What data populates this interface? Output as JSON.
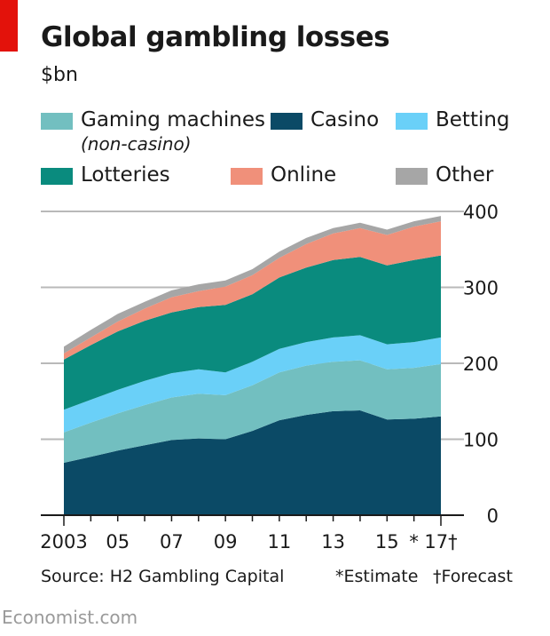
{
  "header": {
    "title": "Global gambling losses",
    "unit": "$bn"
  },
  "legend": [
    {
      "key": "gaming",
      "label": "Gaming machines",
      "sub": "(non-casino)",
      "color": "#72bfc0"
    },
    {
      "key": "casino",
      "label": "Casino",
      "color": "#0b4a66"
    },
    {
      "key": "betting",
      "label": "Betting",
      "color": "#6ad0f8"
    },
    {
      "key": "lotteries",
      "label": "Lotteries",
      "color": "#0a8b7e"
    },
    {
      "key": "online",
      "label": "Online",
      "color": "#f0907a"
    },
    {
      "key": "other",
      "label": "Other",
      "color": "#a6a6a6"
    }
  ],
  "footer": {
    "source": "Source: H2 Gambling Capital",
    "estimate_note": "*Estimate",
    "forecast_note": "†Forecast"
  },
  "brand": "Economist.com",
  "chart_data": {
    "type": "area",
    "stacked": true,
    "title": "Global gambling losses",
    "ylabel": "$bn",
    "x": [
      2003,
      2004,
      2005,
      2006,
      2007,
      2008,
      2009,
      2010,
      2011,
      2012,
      2013,
      2014,
      2015,
      2016,
      2017
    ],
    "x_tick_labels": [
      "2003",
      "05",
      "07",
      "09",
      "11",
      "13",
      "15",
      "*",
      "17†"
    ],
    "ylim": [
      0,
      400
    ],
    "y_ticks": [
      0,
      100,
      200,
      300,
      400
    ],
    "y_axis_side": "right",
    "grid": true,
    "series": [
      {
        "name": "Casino",
        "color": "#0b4a66",
        "values": [
          69,
          77,
          85,
          92,
          99,
          101,
          100,
          111,
          125,
          132,
          137,
          138,
          126,
          127,
          130
        ]
      },
      {
        "name": "Gaming machines (non-casino)",
        "color": "#72bfc0",
        "values": [
          40,
          45,
          49,
          53,
          56,
          59,
          58,
          60,
          63,
          65,
          65,
          66,
          66,
          67,
          69
        ]
      },
      {
        "name": "Betting",
        "color": "#6ad0f8",
        "values": [
          30,
          30,
          31,
          32,
          32,
          32,
          30,
          31,
          31,
          31,
          32,
          33,
          33,
          34,
          35
        ]
      },
      {
        "name": "Lotteries",
        "color": "#0a8b7e",
        "values": [
          66,
          72,
          77,
          79,
          80,
          82,
          89,
          89,
          94,
          98,
          102,
          103,
          104,
          108,
          108
        ]
      },
      {
        "name": "Online",
        "color": "#f0907a",
        "values": [
          8,
          10,
          13,
          16,
          20,
          21,
          24,
          25,
          26,
          31,
          35,
          38,
          40,
          44,
          45
        ]
      },
      {
        "name": "Other",
        "color": "#a6a6a6",
        "values": [
          9,
          10,
          10,
          9,
          9,
          9,
          8,
          8,
          8,
          8,
          7,
          7,
          7,
          7,
          7
        ]
      }
    ]
  }
}
